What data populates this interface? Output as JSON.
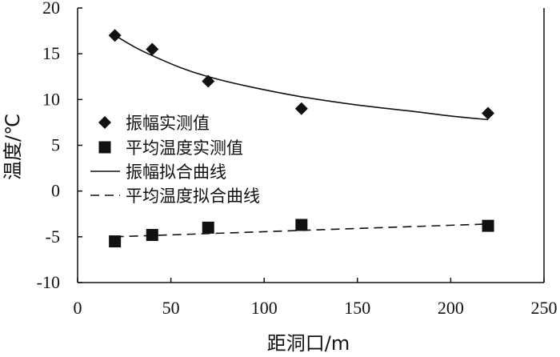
{
  "chart_data": {
    "type": "scatter",
    "xlabel": "距洞口/m",
    "ylabel": "温度/℃",
    "xlim": [
      0,
      250
    ],
    "ylim": [
      -10,
      20
    ],
    "xticks": [
      "0",
      "50",
      "100",
      "150",
      "200",
      "250"
    ],
    "yticks": [
      "20",
      "15",
      "10",
      "5",
      "0",
      "-5",
      "-10"
    ],
    "grid": false,
    "legend_position": "center-left",
    "series": [
      {
        "name": "振幅实测值",
        "marker": "diamond",
        "x": [
          20,
          40,
          70,
          120,
          220
        ],
        "y": [
          17.0,
          15.5,
          12.0,
          9.0,
          8.5
        ]
      },
      {
        "name": "平均温度实测值",
        "marker": "square",
        "x": [
          20,
          40,
          70,
          120,
          220
        ],
        "y": [
          -5.5,
          -4.8,
          -4.0,
          -3.7,
          -3.8
        ]
      },
      {
        "name": "振幅拟合曲线",
        "line": "solid",
        "x": [
          20,
          30,
          40,
          55,
          70,
          90,
          120,
          150,
          180,
          200,
          220
        ],
        "y": [
          17.0,
          15.8,
          14.8,
          13.5,
          12.5,
          11.5,
          10.3,
          9.4,
          8.7,
          8.2,
          7.8
        ]
      },
      {
        "name": "平均温度拟合曲线",
        "line": "dashed",
        "x": [
          20,
          220
        ],
        "y": [
          -5.0,
          -3.6
        ]
      }
    ],
    "colors": {
      "ink": "#111111"
    }
  }
}
